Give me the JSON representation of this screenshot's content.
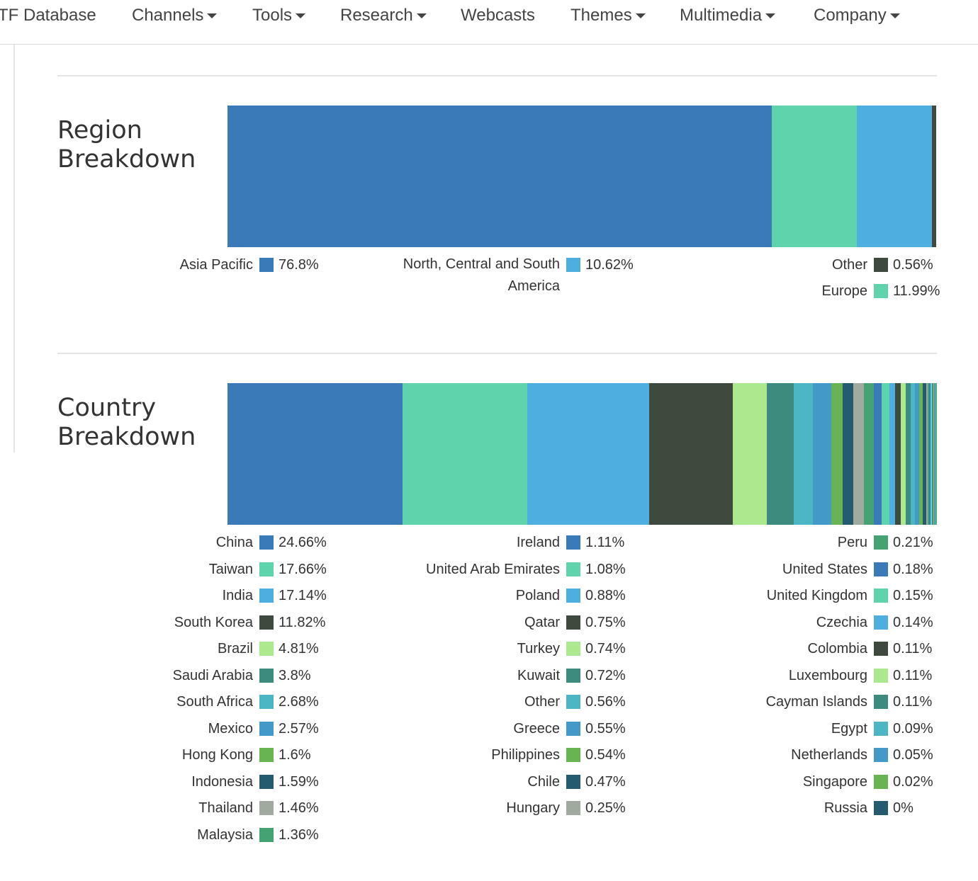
{
  "nav": {
    "items": [
      {
        "label": "TF Database",
        "dropdown": false
      },
      {
        "label": "Channels",
        "dropdown": true
      },
      {
        "label": "Tools",
        "dropdown": true
      },
      {
        "label": "Research",
        "dropdown": true
      },
      {
        "label": "Webcasts",
        "dropdown": false
      },
      {
        "label": "Themes",
        "dropdown": true
      },
      {
        "label": "Multimedia",
        "dropdown": true
      },
      {
        "label": "Company",
        "dropdown": true
      }
    ]
  },
  "region": {
    "title": "Region Breakdown"
  },
  "country": {
    "title": "Country Breakdown"
  },
  "chart_data": [
    {
      "type": "bar",
      "layout": "single stacked horizontal bar with legend below",
      "title": "Region Breakdown",
      "series": [
        {
          "name": "Asia Pacific",
          "label": "76.8%",
          "value": 76.8,
          "color": "#3a7ab8"
        },
        {
          "name": "Europe",
          "label": "11.99%",
          "value": 11.99,
          "color": "#5fd3ab"
        },
        {
          "name": "North, Central and South America",
          "label": "10.62%",
          "value": 10.62,
          "color": "#4eaee0"
        },
        {
          "name": "Other",
          "label": "0.56%",
          "value": 0.56,
          "color": "#3e4a3e"
        }
      ],
      "legend_columns": [
        [
          "Asia Pacific"
        ],
        [
          "North, Central and South America"
        ],
        [
          "Other",
          "Europe"
        ]
      ]
    },
    {
      "type": "bar",
      "layout": "single stacked horizontal bar with legend below",
      "title": "Country Breakdown",
      "series": [
        {
          "name": "China",
          "label": "24.66%",
          "value": 24.66,
          "color": "#3a7ab8"
        },
        {
          "name": "Taiwan",
          "label": "17.66%",
          "value": 17.66,
          "color": "#5fd3ab"
        },
        {
          "name": "India",
          "label": "17.14%",
          "value": 17.14,
          "color": "#4eaee0"
        },
        {
          "name": "South Korea",
          "label": "11.82%",
          "value": 11.82,
          "color": "#3e4a3e"
        },
        {
          "name": "Brazil",
          "label": "4.81%",
          "value": 4.81,
          "color": "#abe88e"
        },
        {
          "name": "Saudi Arabia",
          "label": "3.8%",
          "value": 3.8,
          "color": "#3d8b7e"
        },
        {
          "name": "South Africa",
          "label": "2.68%",
          "value": 2.68,
          "color": "#4cb6c4"
        },
        {
          "name": "Mexico",
          "label": "2.57%",
          "value": 2.57,
          "color": "#4399c8"
        },
        {
          "name": "Hong Kong",
          "label": "1.6%",
          "value": 1.6,
          "color": "#69b452"
        },
        {
          "name": "Indonesia",
          "label": "1.59%",
          "value": 1.59,
          "color": "#255b6e"
        },
        {
          "name": "Thailand",
          "label": "1.46%",
          "value": 1.46,
          "color": "#a0aa9e"
        },
        {
          "name": "Malaysia",
          "label": "1.36%",
          "value": 1.36,
          "color": "#45a373"
        },
        {
          "name": "Ireland",
          "label": "1.11%",
          "value": 1.11,
          "color": "#3a7ab8"
        },
        {
          "name": "United Arab Emirates",
          "label": "1.08%",
          "value": 1.08,
          "color": "#5fd3ab"
        },
        {
          "name": "Poland",
          "label": "0.88%",
          "value": 0.88,
          "color": "#4eaee0"
        },
        {
          "name": "Qatar",
          "label": "0.75%",
          "value": 0.75,
          "color": "#3e4a3e"
        },
        {
          "name": "Turkey",
          "label": "0.74%",
          "value": 0.74,
          "color": "#abe88e"
        },
        {
          "name": "Kuwait",
          "label": "0.72%",
          "value": 0.72,
          "color": "#3d8b7e"
        },
        {
          "name": "Other",
          "label": "0.56%",
          "value": 0.56,
          "color": "#4cb6c4"
        },
        {
          "name": "Greece",
          "label": "0.55%",
          "value": 0.55,
          "color": "#4399c8"
        },
        {
          "name": "Philippines",
          "label": "0.54%",
          "value": 0.54,
          "color": "#69b452"
        },
        {
          "name": "Chile",
          "label": "0.47%",
          "value": 0.47,
          "color": "#255b6e"
        },
        {
          "name": "Hungary",
          "label": "0.25%",
          "value": 0.25,
          "color": "#a0aa9e"
        },
        {
          "name": "Peru",
          "label": "0.21%",
          "value": 0.21,
          "color": "#45a373"
        },
        {
          "name": "United States",
          "label": "0.18%",
          "value": 0.18,
          "color": "#3a7ab8"
        },
        {
          "name": "United Kingdom",
          "label": "0.15%",
          "value": 0.15,
          "color": "#5fd3ab"
        },
        {
          "name": "Czechia",
          "label": "0.14%",
          "value": 0.14,
          "color": "#4eaee0"
        },
        {
          "name": "Colombia",
          "label": "0.11%",
          "value": 0.11,
          "color": "#3e4a3e"
        },
        {
          "name": "Luxembourg",
          "label": "0.11%",
          "value": 0.11,
          "color": "#abe88e"
        },
        {
          "name": "Cayman Islands",
          "label": "0.11%",
          "value": 0.11,
          "color": "#3d8b7e"
        },
        {
          "name": "Egypt",
          "label": "0.09%",
          "value": 0.09,
          "color": "#4cb6c4"
        },
        {
          "name": "Netherlands",
          "label": "0.05%",
          "value": 0.05,
          "color": "#4399c8"
        },
        {
          "name": "Singapore",
          "label": "0.02%",
          "value": 0.02,
          "color": "#69b452"
        },
        {
          "name": "Russia",
          "label": "0%",
          "value": 0,
          "color": "#255b6e"
        }
      ],
      "legend_columns": [
        [
          "China",
          "Taiwan",
          "India",
          "South Korea",
          "Brazil",
          "Saudi Arabia",
          "South Africa",
          "Mexico",
          "Hong Kong",
          "Indonesia",
          "Thailand",
          "Malaysia"
        ],
        [
          "Ireland",
          "United Arab Emirates",
          "Poland",
          "Qatar",
          "Turkey",
          "Kuwait",
          "Other",
          "Greece",
          "Philippines",
          "Chile",
          "Hungary"
        ],
        [
          "Peru",
          "United States",
          "United Kingdom",
          "Czechia",
          "Colombia",
          "Luxembourg",
          "Cayman Islands",
          "Egypt",
          "Netherlands",
          "Singapore",
          "Russia"
        ]
      ]
    }
  ]
}
